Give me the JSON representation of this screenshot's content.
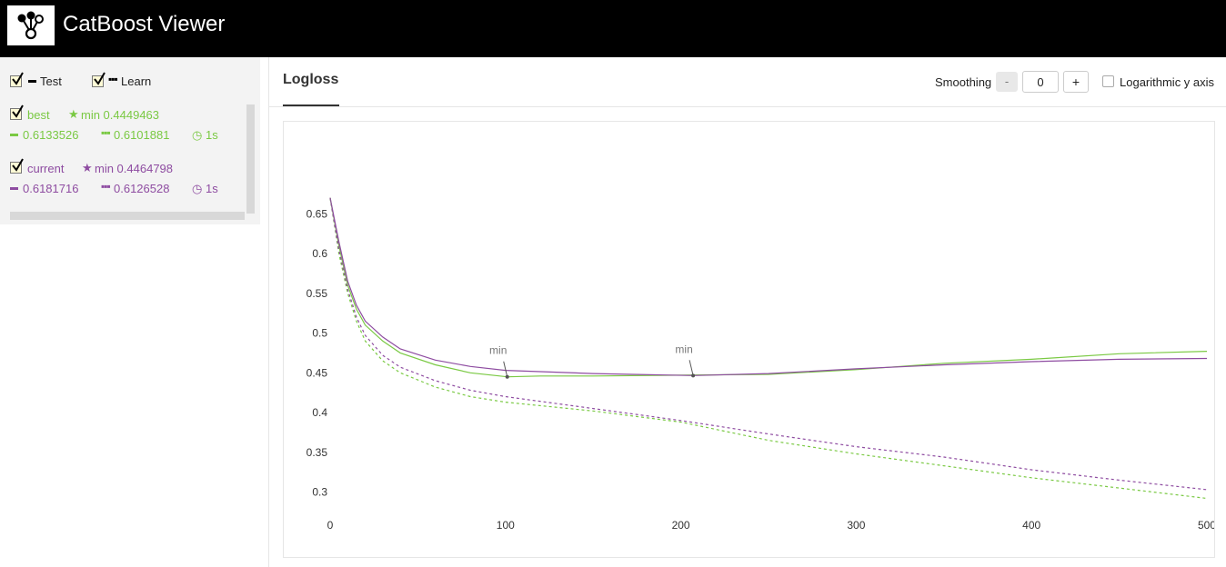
{
  "app": {
    "title": "CatBoost Viewer"
  },
  "legend": {
    "test_label": "Test",
    "learn_label": "Learn"
  },
  "runs": [
    {
      "name": "best",
      "color": "#7ac943",
      "min_label": "min 0.4449463",
      "test_value": "0.6133526",
      "learn_value": "0.6101881",
      "time": "1s"
    },
    {
      "name": "current",
      "color": "#8e4ca1",
      "min_label": "min 0.4464798",
      "test_value": "0.6181716",
      "learn_value": "0.6126528",
      "time": "1s"
    }
  ],
  "tabs": [
    {
      "label": "Logloss",
      "active": true
    }
  ],
  "controls": {
    "smoothing_label": "Smoothing",
    "minus_label": "-",
    "smoothing_value": "0",
    "plus_label": "+",
    "log_axis_label": "Logarithmic y axis",
    "log_axis_checked": false
  },
  "chart_data": {
    "type": "line",
    "title": "Logloss",
    "x_ticks": [
      "0",
      "100",
      "200",
      "300",
      "400",
      "500"
    ],
    "y_ticks": [
      "0.65",
      "0.6",
      "0.55",
      "0.5",
      "0.45",
      "0.4",
      "0.35",
      "0.3"
    ],
    "xlim": [
      0,
      500
    ],
    "ylim": [
      0.28,
      0.68
    ],
    "annotation_label": "min",
    "series": [
      {
        "name": "best",
        "run": "best",
        "kind": "test",
        "style": "solid",
        "color": "#7ac943",
        "points": [
          [
            0,
            0.67
          ],
          [
            5,
            0.61
          ],
          [
            10,
            0.56
          ],
          [
            15,
            0.53
          ],
          [
            20,
            0.51
          ],
          [
            30,
            0.49
          ],
          [
            40,
            0.475
          ],
          [
            60,
            0.46
          ],
          [
            80,
            0.45
          ],
          [
            101,
            0.4449
          ],
          [
            120,
            0.446
          ],
          [
            150,
            0.446
          ],
          [
            200,
            0.447
          ],
          [
            250,
            0.448
          ],
          [
            300,
            0.454
          ],
          [
            350,
            0.462
          ],
          [
            400,
            0.467
          ],
          [
            450,
            0.474
          ],
          [
            500,
            0.477
          ]
        ]
      },
      {
        "name": "current",
        "run": "current",
        "kind": "test",
        "style": "solid",
        "color": "#8e4ca1",
        "points": [
          [
            0,
            0.67
          ],
          [
            5,
            0.615
          ],
          [
            10,
            0.565
          ],
          [
            15,
            0.535
          ],
          [
            20,
            0.515
          ],
          [
            30,
            0.495
          ],
          [
            40,
            0.48
          ],
          [
            60,
            0.466
          ],
          [
            80,
            0.458
          ],
          [
            100,
            0.453
          ],
          [
            150,
            0.449
          ],
          [
            207,
            0.4465
          ],
          [
            250,
            0.449
          ],
          [
            300,
            0.455
          ],
          [
            350,
            0.46
          ],
          [
            400,
            0.464
          ],
          [
            450,
            0.467
          ],
          [
            500,
            0.468
          ]
        ]
      },
      {
        "name": "best",
        "run": "best",
        "kind": "learn",
        "style": "dashed",
        "color": "#7ac943",
        "points": [
          [
            0,
            0.67
          ],
          [
            5,
            0.6
          ],
          [
            10,
            0.55
          ],
          [
            15,
            0.515
          ],
          [
            20,
            0.49
          ],
          [
            30,
            0.465
          ],
          [
            40,
            0.45
          ],
          [
            60,
            0.432
          ],
          [
            80,
            0.42
          ],
          [
            100,
            0.413
          ],
          [
            150,
            0.402
          ],
          [
            200,
            0.388
          ],
          [
            250,
            0.365
          ],
          [
            300,
            0.348
          ],
          [
            350,
            0.333
          ],
          [
            400,
            0.318
          ],
          [
            450,
            0.305
          ],
          [
            500,
            0.292
          ]
        ]
      },
      {
        "name": "current",
        "run": "current",
        "kind": "learn",
        "style": "dashed",
        "color": "#8e4ca1",
        "points": [
          [
            0,
            0.67
          ],
          [
            5,
            0.605
          ],
          [
            10,
            0.555
          ],
          [
            15,
            0.52
          ],
          [
            20,
            0.497
          ],
          [
            30,
            0.472
          ],
          [
            40,
            0.457
          ],
          [
            60,
            0.44
          ],
          [
            80,
            0.428
          ],
          [
            100,
            0.42
          ],
          [
            150,
            0.405
          ],
          [
            200,
            0.39
          ],
          [
            250,
            0.373
          ],
          [
            300,
            0.357
          ],
          [
            350,
            0.344
          ],
          [
            400,
            0.328
          ],
          [
            450,
            0.315
          ],
          [
            500,
            0.303
          ]
        ]
      }
    ],
    "min_markers": [
      {
        "x": 101,
        "y": 0.4449,
        "color": "#555"
      },
      {
        "x": 207,
        "y": 0.4465,
        "color": "#555"
      }
    ]
  }
}
